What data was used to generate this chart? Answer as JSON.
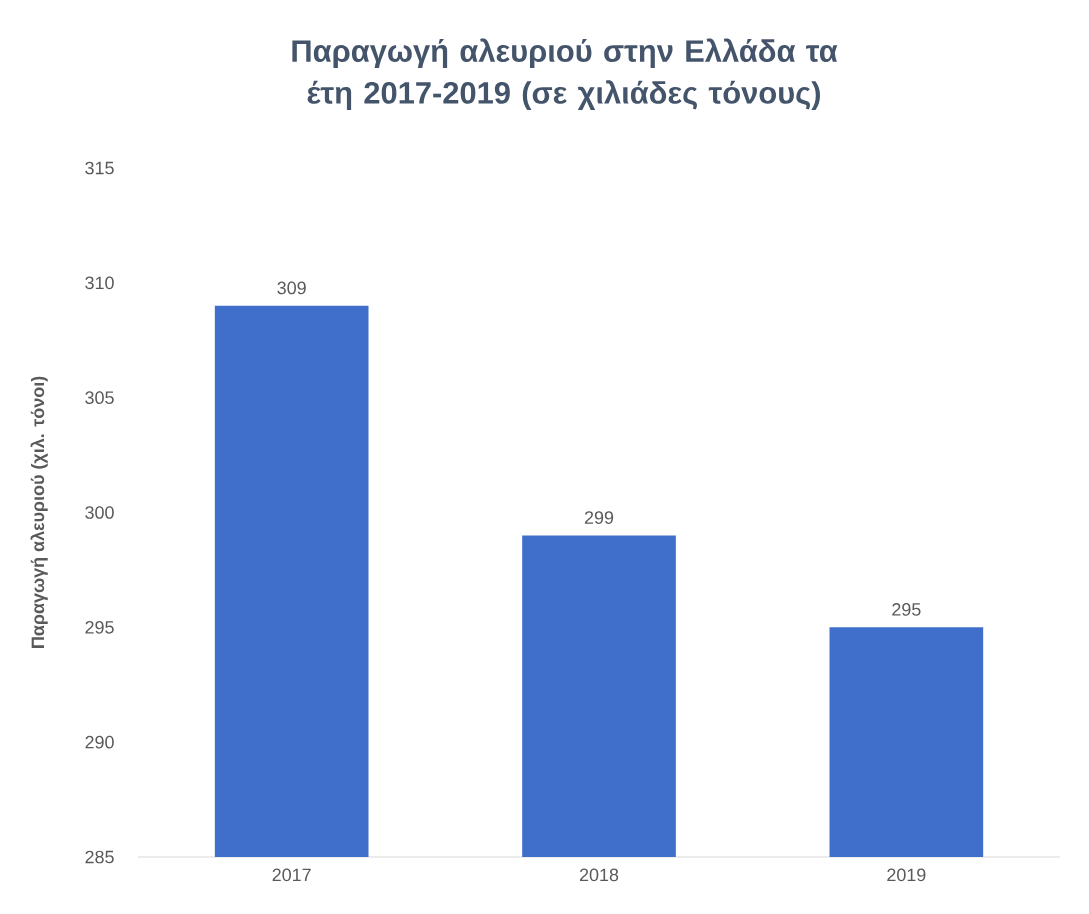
{
  "chart_data": {
    "type": "bar",
    "title": "Παραγωγή αλευριού στην Ελλάδα τα έτη 2017-2019 (σε χιλιάδες τόνους)",
    "ylabel": "Παραγωγή αλευριού (χιλ. τόνοι)",
    "categories": [
      "2017",
      "2018",
      "2019"
    ],
    "values": [
      309,
      299,
      295
    ],
    "color": "#3f6fca",
    "ylim": [
      285,
      315
    ],
    "yticks": [
      285,
      290,
      295,
      300,
      305,
      310,
      315
    ],
    "data_labels": true,
    "grid": false
  }
}
